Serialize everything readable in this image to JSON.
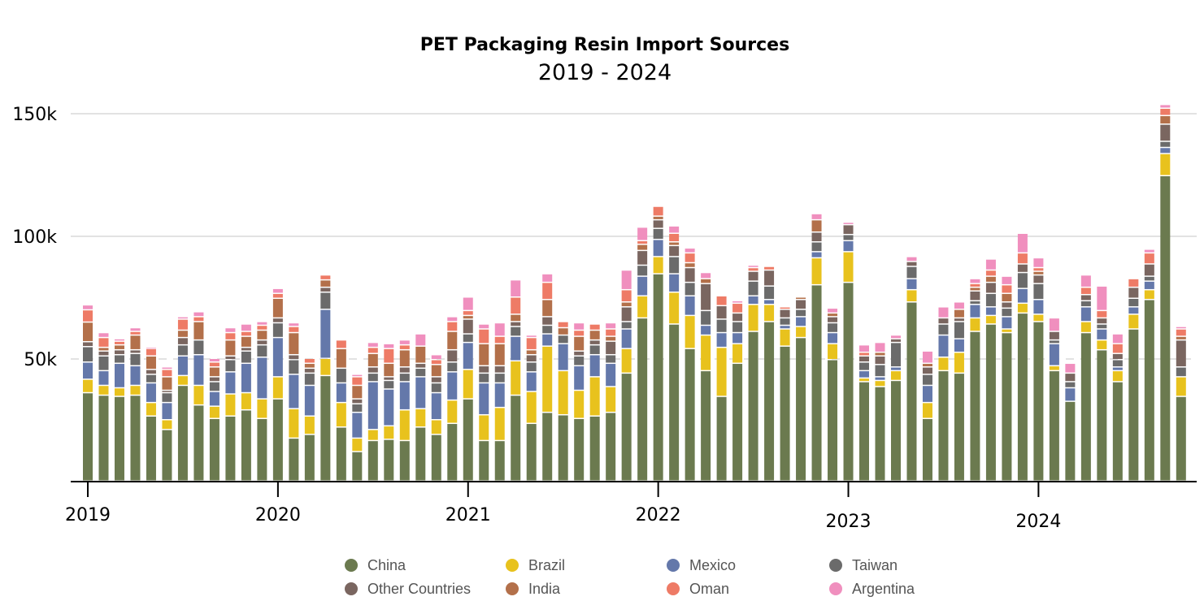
{
  "chart_data": {
    "type": "bar",
    "stacked": true,
    "title": "PET Packaging Resin Import Sources",
    "subtitle": "2019 - 2024",
    "xlabel": "",
    "ylabel": "",
    "ylim": [
      0,
      150000
    ],
    "y_ticks": [
      {
        "value": 50000,
        "label": "50k"
      },
      {
        "value": 100000,
        "label": "100k"
      },
      {
        "value": 150000,
        "label": "150k"
      }
    ],
    "x_ticks": [
      {
        "index": 0,
        "label": "2019"
      },
      {
        "index": 12,
        "label": "2020"
      },
      {
        "index": 24,
        "label": "2021"
      },
      {
        "index": 36,
        "label": "2022"
      },
      {
        "index": 48,
        "label": "2023"
      },
      {
        "index": 60,
        "label": "2024"
      }
    ],
    "x_start": "2019-01",
    "x_end": "2024-10",
    "unit_multiplier": 1000,
    "legend_position": "bottom",
    "grid": true,
    "series": [
      {
        "name": "China",
        "color": "#6b7a4f",
        "values": [
          36,
          35,
          34.5,
          35,
          26.5,
          21,
          39,
          31,
          25.5,
          26.5,
          29,
          25.5,
          33.5,
          17.5,
          19,
          43,
          22,
          12,
          16.5,
          17,
          16.5,
          22,
          19,
          23.5,
          33.5,
          16.5,
          16.5,
          35,
          23.5,
          28,
          27,
          25.5,
          26.5,
          28,
          44,
          66.5,
          84.5,
          64,
          54,
          45,
          34.5,
          48,
          61,
          65,
          55,
          58.5,
          80,
          49.5,
          81,
          40.5,
          38.5,
          41,
          73,
          25.5,
          45,
          44,
          61,
          64,
          60.5,
          68.5,
          65,
          45,
          32.5,
          60.5,
          53.5,
          40.5,
          62,
          74,
          124.5,
          34.5
        ]
      },
      {
        "name": "Brazil",
        "color": "#e8c21d",
        "values": [
          5.5,
          4,
          3.5,
          4,
          5.5,
          4,
          4,
          8,
          5,
          9,
          7,
          8,
          9,
          12,
          7.5,
          7,
          10,
          5.5,
          4.5,
          5.5,
          12.5,
          7.5,
          6,
          9.5,
          12,
          10.5,
          13.5,
          14,
          13,
          27,
          18,
          11.5,
          16,
          10.5,
          10,
          9,
          7,
          13,
          13.5,
          14.5,
          20,
          8,
          11,
          7,
          7,
          4.5,
          11,
          6.5,
          12.5,
          1.5,
          2.5,
          4,
          5,
          6.5,
          5.5,
          8.5,
          5.5,
          3.5,
          1.5,
          4,
          3,
          2,
          0,
          4.5,
          4,
          4.5,
          6,
          4,
          9,
          8
        ]
      },
      {
        "name": "Mexico",
        "color": "#6478aa",
        "values": [
          7,
          6,
          10,
          8,
          8,
          7,
          8,
          12.5,
          6,
          9,
          12,
          17,
          16,
          14,
          12.5,
          20,
          8,
          10.5,
          19.5,
          15,
          11.5,
          13,
          11,
          11.5,
          11,
          13,
          10,
          10,
          8,
          5,
          11,
          10,
          9,
          9.5,
          8,
          8,
          7,
          7.5,
          8,
          4,
          6,
          4.5,
          3.5,
          2,
          1.5,
          4,
          2.5,
          4.5,
          4.5,
          3,
          1.5,
          1.5,
          4.5,
          7,
          9,
          5.5,
          5.5,
          3.5,
          5,
          6,
          6,
          9,
          5.5,
          6,
          4.5,
          1.5,
          3,
          3.5,
          2.5,
          0
        ]
      },
      {
        "name": "Taiwan",
        "color": "#6b6b6b",
        "values": [
          6.3,
          6,
          3.5,
          5,
          3.5,
          4,
          4.5,
          6,
          4,
          5,
          5,
          5,
          6,
          6,
          5,
          7,
          6,
          3.5,
          3.5,
          3.5,
          3.5,
          3.5,
          4,
          4,
          3.5,
          4,
          4,
          4,
          4,
          3.5,
          3.5,
          4,
          4,
          3.5,
          3,
          4.5,
          4.5,
          7,
          5.5,
          6,
          5.5,
          4.5,
          6,
          5.5,
          3,
          3,
          4,
          4,
          2.5,
          3.5,
          5,
          10,
          5,
          4.5,
          4.5,
          7,
          1.5,
          5.5,
          3.5,
          6.5,
          6.5,
          1.5,
          2.5,
          2.5,
          2,
          3,
          3.5,
          2,
          2.5,
          4
        ]
      },
      {
        "name": "Other Countries",
        "color": "#7a6660",
        "values": [
          2,
          2,
          2,
          1.5,
          2,
          1,
          3,
          0,
          2,
          1.5,
          1.5,
          2,
          2,
          2,
          2,
          2,
          0,
          2,
          2.5,
          1.5,
          2.5,
          2,
          2.5,
          5,
          6,
          3,
          3,
          2,
          3,
          3.5,
          0,
          2,
          2,
          5.5,
          6,
          6,
          3.5,
          4.5,
          6,
          11,
          5.5,
          3.5,
          4,
          6.5,
          3.5,
          4,
          4,
          2.5,
          4,
          2.5,
          3.5,
          1.5,
          2,
          3,
          2.5,
          1.5,
          4,
          4.5,
          2.5,
          3.5,
          3.5,
          3.5,
          3.5,
          2.5,
          2.5,
          2.5,
          4.5,
          5,
          7,
          11
        ]
      },
      {
        "name": "India",
        "color": "#b3704a",
        "values": [
          8,
          1.5,
          2,
          6,
          5.5,
          5.5,
          3,
          7.5,
          4,
          6.5,
          4.5,
          4,
          8,
          9,
          2,
          3,
          8,
          5.5,
          5.5,
          5.5,
          7,
          7,
          5,
          7.5,
          1.5,
          9,
          9,
          3,
          2,
          7,
          3,
          6,
          4,
          2,
          2,
          2.5,
          1.5,
          1.5,
          2,
          2,
          0,
          0,
          0,
          0,
          0,
          1,
          5,
          1.5,
          0,
          0,
          1.5,
          0,
          0,
          1.5,
          0,
          3.5,
          1.5,
          2.5,
          3.5,
          0,
          1.5,
          0,
          0,
          0,
          0,
          0,
          0,
          0,
          3.5,
          1.5
        ]
      },
      {
        "name": "Oman",
        "color": "#ee7b66",
        "values": [
          5,
          4,
          1.5,
          1.5,
          3,
          3,
          4.5,
          2,
          2,
          3,
          2,
          2,
          2,
          2.5,
          2,
          2,
          3.5,
          3.5,
          2.5,
          6,
          2,
          0,
          2,
          4,
          2,
          6,
          3,
          7,
          5,
          7,
          2.5,
          2.5,
          2.5,
          3,
          5,
          1.5,
          4,
          3.5,
          4,
          0,
          4,
          4,
          1.5,
          1.5,
          1,
          0,
          0,
          0,
          0,
          1.5,
          0,
          0,
          0,
          0,
          0,
          0,
          1.5,
          2.5,
          3.5,
          4.5,
          1.5,
          0,
          0,
          3,
          3,
          4,
          3.5,
          4.5,
          3,
          3
        ]
      },
      {
        "name": "Argentina",
        "color": "#f08fbe",
        "values": [
          2,
          2,
          1,
          1.5,
          0.5,
          1,
          1,
          2,
          1.5,
          2,
          3,
          1.5,
          2,
          1.5,
          0,
          0,
          0,
          1,
          2,
          2,
          2,
          5,
          2,
          2,
          5.5,
          2,
          5.5,
          7,
          1,
          3.5,
          0,
          3,
          0,
          2.5,
          8,
          5.5,
          0,
          3,
          2,
          2.5,
          0,
          1,
          1,
          0,
          0,
          0,
          2.5,
          2,
          1,
          3,
          4,
          1.5,
          2,
          5,
          4.5,
          3,
          2,
          4.5,
          3.5,
          8,
          4,
          5.5,
          4,
          5,
          10,
          4,
          0,
          1.5,
          1.5,
          1
        ]
      }
    ]
  }
}
